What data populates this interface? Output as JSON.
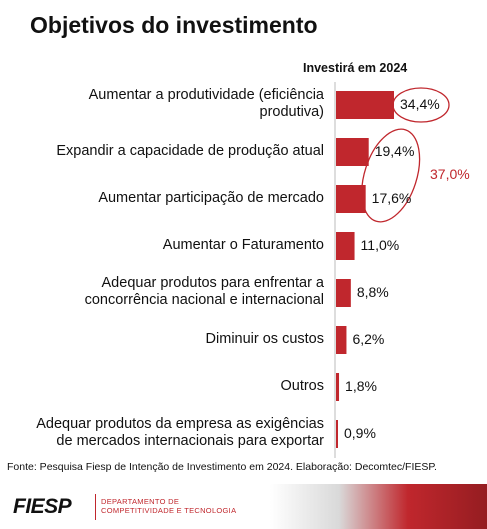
{
  "header": {
    "title": "Objetivos do investimento"
  },
  "chart_data": {
    "type": "bar",
    "orientation": "horizontal",
    "series_title": "Investirá em 2024",
    "categories": [
      [
        "Aumentar a produtividade (eficiência",
        "produtiva)"
      ],
      [
        "Expandir a capacidade de produção atual"
      ],
      [
        "Aumentar participação de mercado"
      ],
      [
        "Aumentar o Faturamento"
      ],
      [
        "Adequar produtos para enfrentar a",
        "concorrência nacional e internacional"
      ],
      [
        "Diminuir os custos"
      ],
      [
        "Outros"
      ],
      [
        "Adequar produtos da empresa as exigências",
        "de mercados internacionais para exportar"
      ]
    ],
    "values": [
      34.4,
      19.4,
      17.6,
      11.0,
      8.8,
      6.2,
      1.8,
      0.9
    ],
    "value_labels": [
      "34,4%",
      "19,4%",
      "17,6%",
      "11,0%",
      "8,8%",
      "6,2%",
      "1,8%",
      "0,9%"
    ],
    "bar_color": "#c0272d",
    "annotation": {
      "text": "37,0%",
      "color": "#c0272d",
      "refers_to_categories": [
        1,
        2
      ]
    },
    "grid": false,
    "legend": "none"
  },
  "source_note": "Fonte: Pesquisa Fiesp de Intenção de Investimento em 2024. Elaboração: Decomtec/FIESP.",
  "footer": {
    "logo": "FIESP",
    "dept_line1": "DEPARTAMENTO DE",
    "dept_line2": "COMPETITIVIDADE E TECNOLOGIA",
    "accent_color": "#c0272d"
  }
}
